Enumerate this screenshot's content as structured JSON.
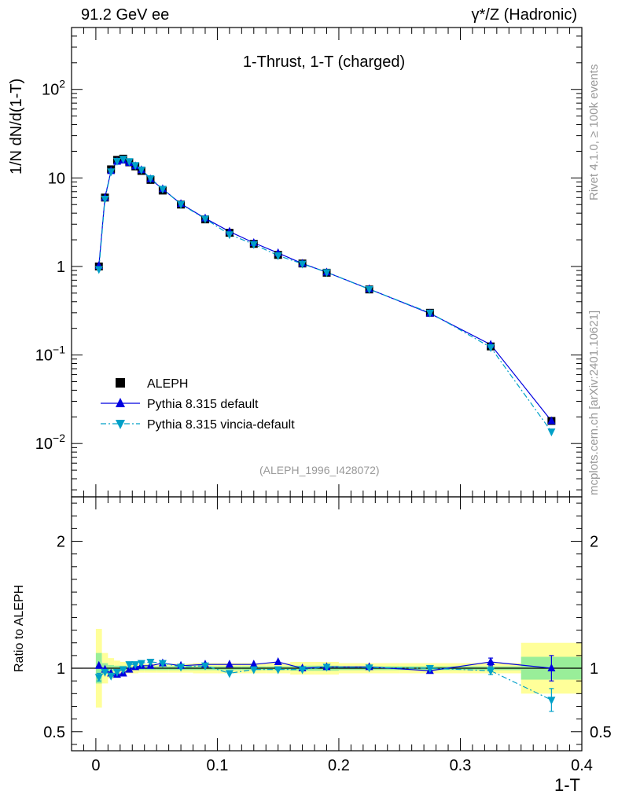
{
  "header": {
    "left": "91.2 GeV ee",
    "right": "γ*/Z (Hadronic)"
  },
  "side_text": {
    "top": "Rivet 4.1.0, ≥ 100k events",
    "bottom": "mcplots.cern.ch [arXiv:2401.10621]"
  },
  "chart_data": [
    {
      "type": "scatter",
      "panel": "main",
      "title": "1-Thrust, 1-T (charged)",
      "ylabel": "1/N  dN/d(1-T)",
      "xlabel": "1-T",
      "yscale": "log",
      "ylim": [
        0.0025,
        500
      ],
      "xlim": [
        -0.02,
        0.4
      ],
      "ytick_labels": [
        "10^-2",
        "10^-1",
        "1",
        "10",
        "10^2"
      ],
      "yticks": [
        0.01,
        0.1,
        1,
        10,
        100
      ],
      "analysis_label": "(ALEPH_1996_I428072)",
      "legend": [
        "ALEPH",
        "Pythia 8.315 default",
        "Pythia 8.315 vincia-default"
      ],
      "legend_position": "bottom-left",
      "x": [
        0.0025,
        0.0075,
        0.0125,
        0.0175,
        0.0225,
        0.0275,
        0.0325,
        0.0375,
        0.045,
        0.055,
        0.07,
        0.09,
        0.11,
        0.13,
        0.15,
        0.17,
        0.19,
        0.225,
        0.275,
        0.325,
        0.375
      ],
      "series": [
        {
          "name": "ALEPH",
          "color": "#000000",
          "marker": "square",
          "values": [
            1.0,
            6.0,
            12.5,
            16.0,
            16.5,
            15.0,
            13.5,
            12.0,
            9.5,
            7.2,
            5.0,
            3.4,
            2.4,
            1.8,
            1.35,
            1.08,
            0.85,
            0.55,
            0.3,
            0.125,
            0.018
          ]
        },
        {
          "name": "Pythia 8.315 default",
          "color": "#0000e0",
          "marker": "triangle-up",
          "values": [
            1.02,
            6.0,
            12.0,
            15.3,
            15.8,
            14.8,
            13.6,
            12.3,
            9.7,
            7.5,
            5.1,
            3.5,
            2.48,
            1.85,
            1.42,
            1.08,
            0.86,
            0.556,
            0.295,
            0.131,
            0.018
          ]
        },
        {
          "name": "Pythia 8.315 vincia-default",
          "color": "#00a0c8",
          "marker": "triangle-down",
          "values": [
            0.93,
            5.8,
            11.8,
            15.5,
            16.4,
            15.4,
            13.9,
            12.4,
            9.9,
            7.5,
            5.05,
            3.45,
            2.3,
            1.78,
            1.33,
            1.07,
            0.86,
            0.553,
            0.3,
            0.122,
            0.0136
          ]
        }
      ]
    },
    {
      "type": "scatter",
      "panel": "ratio",
      "ylabel": "Ratio to ALEPH",
      "xlabel": "1-T",
      "ylim": [
        0.35,
        2.35
      ],
      "xlim": [
        -0.02,
        0.4
      ],
      "yticks": [
        0.5,
        1,
        2
      ],
      "ytick_labels": [
        "0.5",
        "1",
        "2"
      ],
      "xticks": [
        0,
        0.1,
        0.2,
        0.3,
        0.4
      ],
      "xtick_labels": [
        "0",
        "0.1",
        "0.2",
        "0.3",
        "0.4"
      ],
      "x": [
        0.0025,
        0.0075,
        0.0125,
        0.0175,
        0.0225,
        0.0275,
        0.0325,
        0.0375,
        0.045,
        0.055,
        0.07,
        0.09,
        0.11,
        0.13,
        0.15,
        0.17,
        0.19,
        0.225,
        0.275,
        0.325,
        0.375
      ],
      "bands": {
        "bins": [
          [
            0,
            0.005
          ],
          [
            0.005,
            0.01
          ],
          [
            0.01,
            0.015
          ],
          [
            0.015,
            0.02
          ],
          [
            0.02,
            0.025
          ],
          [
            0.025,
            0.03
          ],
          [
            0.03,
            0.035
          ],
          [
            0.035,
            0.04
          ],
          [
            0.04,
            0.05
          ],
          [
            0.05,
            0.06
          ],
          [
            0.06,
            0.08
          ],
          [
            0.08,
            0.1
          ],
          [
            0.1,
            0.12
          ],
          [
            0.12,
            0.14
          ],
          [
            0.14,
            0.16
          ],
          [
            0.16,
            0.18
          ],
          [
            0.18,
            0.2
          ],
          [
            0.2,
            0.25
          ],
          [
            0.25,
            0.3
          ],
          [
            0.3,
            0.35
          ],
          [
            0.35,
            0.4
          ]
        ],
        "yellow": [
          0.31,
          0.12,
          0.08,
          0.06,
          0.05,
          0.04,
          0.04,
          0.035,
          0.035,
          0.035,
          0.035,
          0.04,
          0.04,
          0.04,
          0.04,
          0.05,
          0.05,
          0.04,
          0.04,
          0.04,
          0.2
        ],
        "green": [
          0.12,
          0.04,
          0.025,
          0.02,
          0.02,
          0.015,
          0.015,
          0.015,
          0.015,
          0.015,
          0.015,
          0.015,
          0.015,
          0.015,
          0.015,
          0.02,
          0.02,
          0.015,
          0.015,
          0.015,
          0.09
        ]
      },
      "series": [
        {
          "name": "Pythia 8.315 default",
          "color": "#0000e0",
          "marker": "triangle-up",
          "values": [
            1.02,
            0.99,
            0.96,
            0.95,
            0.96,
            0.99,
            1.01,
            1.02,
            1.02,
            1.04,
            1.02,
            1.03,
            1.03,
            1.03,
            1.05,
            1.0,
            1.01,
            1.01,
            0.98,
            1.05,
            1.0
          ],
          "errors": [
            0.02,
            0.01,
            0.01,
            0.01,
            0.01,
            0.01,
            0.01,
            0.01,
            0.01,
            0.01,
            0.01,
            0.01,
            0.01,
            0.01,
            0.01,
            0.01,
            0.01,
            0.01,
            0.01,
            0.03,
            0.1
          ]
        },
        {
          "name": "Pythia 8.315 vincia-default",
          "color": "#00a0c8",
          "marker": "triangle-down",
          "values": [
            0.93,
            0.97,
            0.94,
            0.97,
            0.99,
            1.03,
            1.03,
            1.04,
            1.05,
            1.04,
            1.01,
            1.02,
            0.96,
            0.99,
            0.99,
            0.99,
            1.01,
            1.005,
            1.0,
            0.98,
            0.75
          ],
          "errors": [
            0.03,
            0.01,
            0.01,
            0.01,
            0.01,
            0.01,
            0.01,
            0.01,
            0.01,
            0.01,
            0.01,
            0.01,
            0.01,
            0.01,
            0.01,
            0.01,
            0.01,
            0.01,
            0.01,
            0.03,
            0.09
          ]
        }
      ]
    }
  ]
}
